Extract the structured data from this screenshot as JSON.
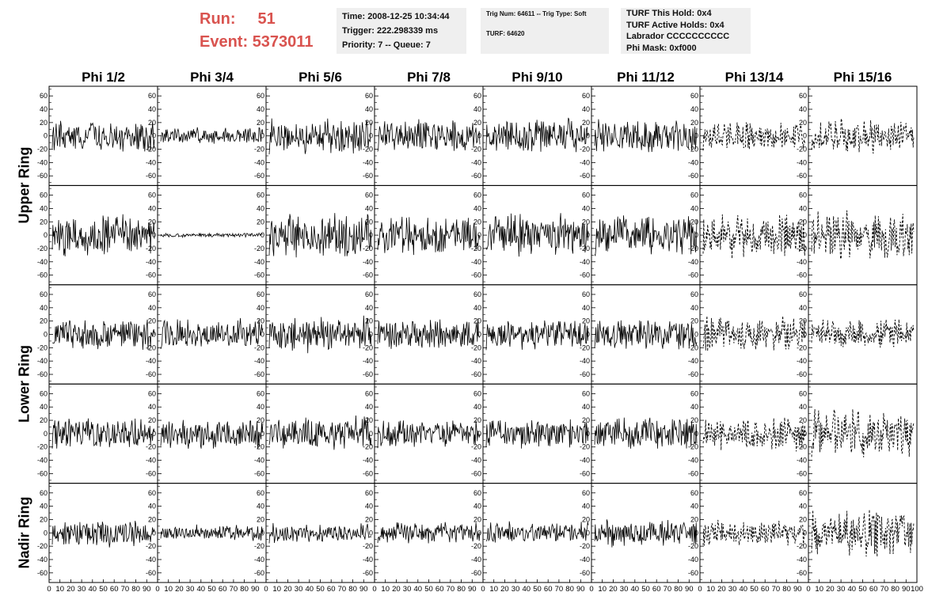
{
  "header": {
    "run_label": "Run:",
    "run_value": "51",
    "event_label": "Event:",
    "event_value": "5373011"
  },
  "info_time": {
    "time": "Time: 2008-12-25 10:34:44",
    "trigger": "Trigger: 222.298339 ms",
    "priority": "Priority: 7 -- Queue: 7"
  },
  "info_trig": {
    "trig": "Trig Num: 64611 -- Trig Type: Soft",
    "turf": "TURF: 64620"
  },
  "info_turf": {
    "this_hold": "TURF This Hold: 0x4",
    "active_holds": "TURF Active Holds: 0x4",
    "labrador": "Labrador CCCCCCCCCC",
    "phi_mask": "Phi Mask: 0xf000"
  },
  "colors": {
    "accent": "#d9534f",
    "panel_bg": "#efefef",
    "trace": "#000000",
    "frame": "#000000"
  },
  "chart_data": {
    "type": "line",
    "columns": [
      "Phi 1/2",
      "Phi 3/4",
      "Phi 5/6",
      "Phi 7/8",
      "Phi 9/10",
      "Phi 11/12",
      "Phi 13/14",
      "Phi 15/16"
    ],
    "ring_labels": [
      {
        "label": "Upper Ring",
        "rows": [
          0,
          1
        ]
      },
      {
        "label": "Lower Ring",
        "rows": [
          2,
          3
        ]
      },
      {
        "label": "Nadir Ring",
        "rows": [
          4
        ]
      }
    ],
    "rows": 5,
    "xlim": [
      0,
      100
    ],
    "ylim": [
      -70,
      70
    ],
    "yticks": [
      -60,
      -40,
      -20,
      0,
      20,
      40,
      60
    ],
    "xtick_labels": [
      "0",
      "10",
      "20",
      "30",
      "40",
      "50",
      "60",
      "70",
      "80",
      "90",
      "100"
    ],
    "dashed_columns": [
      6,
      7
    ],
    "amplitudes": [
      [
        22,
        12,
        25,
        25,
        25,
        25,
        22,
        25
      ],
      [
        30,
        3,
        32,
        28,
        30,
        28,
        32,
        35
      ],
      [
        22,
        22,
        25,
        22,
        22,
        22,
        25,
        22
      ],
      [
        22,
        22,
        25,
        20,
        22,
        22,
        25,
        35
      ],
      [
        20,
        12,
        14,
        16,
        16,
        20,
        18,
        35
      ]
    ]
  }
}
